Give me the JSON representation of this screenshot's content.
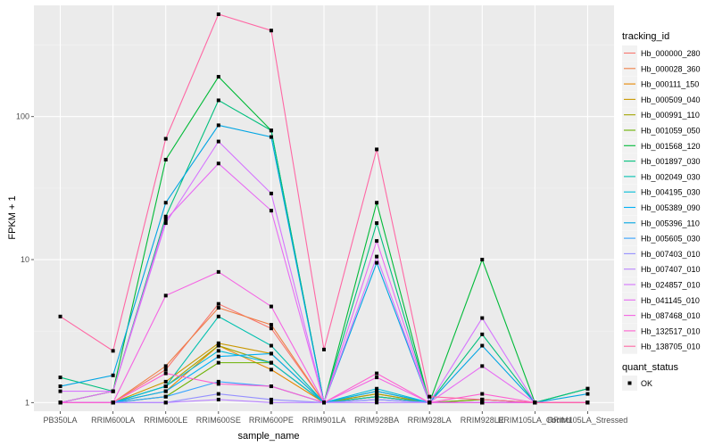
{
  "chart_data": {
    "type": "line",
    "xlabel": "sample_name",
    "ylabel": "FPKM + 1",
    "y_scale": "log10",
    "ylim": [
      0.87,
      600
    ],
    "y_ticks": [
      1,
      10,
      100
    ],
    "y_tick_labels": [
      "1",
      "10",
      "100"
    ],
    "grid": true,
    "legend_position": "right",
    "categories": [
      "PB350LA",
      "RRIM600LA",
      "RRIM600LE",
      "RRIM600SE",
      "RRIM600PE",
      "RRIM901LA",
      "RRIM928BA",
      "RRIM928LA",
      "RRIM928LE",
      "RRIM105LA_Control",
      "RRIM105LA_Stressed"
    ],
    "legend": {
      "color_title": "tracking_id",
      "shape_title": "quant_status",
      "shape_items": [
        {
          "label": "OK"
        }
      ]
    },
    "series": [
      {
        "name": "Hb_000000_280",
        "color": "#F8766D",
        "values": [
          1.0,
          1.0,
          1.7,
          4.9,
          3.3,
          1.0,
          1.15,
          1.0,
          1.0,
          1.0,
          1.0
        ]
      },
      {
        "name": "Hb_000028_360",
        "color": "#EF7F47",
        "values": [
          1.0,
          1.0,
          1.8,
          4.6,
          3.5,
          1.0,
          1.1,
          1.0,
          1.05,
          1.0,
          1.0
        ]
      },
      {
        "name": "Hb_000111_150",
        "color": "#E58700",
        "values": [
          1.0,
          1.0,
          1.2,
          2.5,
          1.7,
          1.0,
          1.1,
          1.0,
          1.0,
          1.0,
          1.0
        ]
      },
      {
        "name": "Hb_000509_040",
        "color": "#C99800",
        "values": [
          1.0,
          1.0,
          1.4,
          2.6,
          2.2,
          1.0,
          1.2,
          1.0,
          1.0,
          1.0,
          1.0
        ]
      },
      {
        "name": "Hb_000991_110",
        "color": "#A3A500",
        "values": [
          1.0,
          1.0,
          1.3,
          2.5,
          1.9,
          1.0,
          1.15,
          1.0,
          1.0,
          1.0,
          1.0
        ]
      },
      {
        "name": "Hb_001059_050",
        "color": "#6BB100",
        "values": [
          1.0,
          1.0,
          1.1,
          1.9,
          1.9,
          1.0,
          1.1,
          1.0,
          1.05,
          1.0,
          1.0
        ]
      },
      {
        "name": "Hb_001568_120",
        "color": "#00BA38",
        "values": [
          1.0,
          1.2,
          50.0,
          190.0,
          80.0,
          1.0,
          25.0,
          1.0,
          10.0,
          1.0,
          1.25
        ]
      },
      {
        "name": "Hb_001897_030",
        "color": "#00BF7D",
        "values": [
          1.5,
          1.2,
          20.0,
          130.0,
          80.0,
          1.0,
          18.0,
          1.0,
          3.0,
          1.0,
          1.25
        ]
      },
      {
        "name": "Hb_002049_030",
        "color": "#00C0AF",
        "values": [
          1.0,
          1.0,
          1.3,
          4.0,
          2.5,
          1.0,
          1.1,
          1.0,
          1.0,
          1.0,
          1.0
        ]
      },
      {
        "name": "Hb_004195_030",
        "color": "#00BCD8",
        "values": [
          1.0,
          1.0,
          1.3,
          2.3,
          1.9,
          1.0,
          1.25,
          1.0,
          1.0,
          1.0,
          1.0
        ]
      },
      {
        "name": "Hb_005389_090",
        "color": "#00B0F6",
        "values": [
          1.0,
          1.0,
          1.2,
          2.1,
          2.2,
          1.0,
          1.2,
          1.0,
          1.0,
          1.0,
          1.0
        ]
      },
      {
        "name": "Hb_005396_110",
        "color": "#00A5E3",
        "values": [
          1.3,
          1.55,
          25.0,
          87.0,
          72.0,
          1.0,
          9.5,
          1.0,
          2.5,
          1.0,
          1.15
        ]
      },
      {
        "name": "Hb_005605_030",
        "color": "#35A2FF",
        "values": [
          1.0,
          1.0,
          1.1,
          1.4,
          1.3,
          1.0,
          1.05,
          1.0,
          1.0,
          1.0,
          1.0
        ]
      },
      {
        "name": "Hb_007403_010",
        "color": "#9590FF",
        "values": [
          1.0,
          1.0,
          1.0,
          1.15,
          1.05,
          1.0,
          1.05,
          1.0,
          1.0,
          1.0,
          1.0
        ]
      },
      {
        "name": "Hb_007407_010",
        "color": "#B983FF",
        "values": [
          1.0,
          1.0,
          1.0,
          1.05,
          1.0,
          1.0,
          1.0,
          1.0,
          1.0,
          1.0,
          1.0
        ]
      },
      {
        "name": "Hb_024857_010",
        "color": "#D575FE",
        "values": [
          1.2,
          1.2,
          18.0,
          67.0,
          29.0,
          1.0,
          10.5,
          1.0,
          3.9,
          1.0,
          1.0
        ]
      },
      {
        "name": "Hb_041145_010",
        "color": "#E76BF3",
        "values": [
          1.0,
          1.2,
          19.0,
          47.0,
          22.0,
          1.0,
          13.5,
          1.0,
          1.8,
          1.0,
          1.0
        ]
      },
      {
        "name": "Hb_087468_010",
        "color": "#F564E3",
        "values": [
          1.0,
          1.0,
          5.6,
          8.2,
          4.7,
          1.0,
          1.5,
          1.0,
          1.0,
          1.0,
          1.0
        ]
      },
      {
        "name": "Hb_132517_010",
        "color": "#FD61D1",
        "values": [
          1.0,
          1.0,
          1.6,
          1.35,
          1.3,
          1.0,
          1.6,
          1.0,
          1.15,
          1.0,
          1.0
        ]
      },
      {
        "name": "Hb_138705_010",
        "color": "#FF67A4",
        "values": [
          4.0,
          2.3,
          70.0,
          520.0,
          400.0,
          2.35,
          59.0,
          1.1,
          1.05,
          1.0,
          1.0
        ]
      }
    ]
  }
}
